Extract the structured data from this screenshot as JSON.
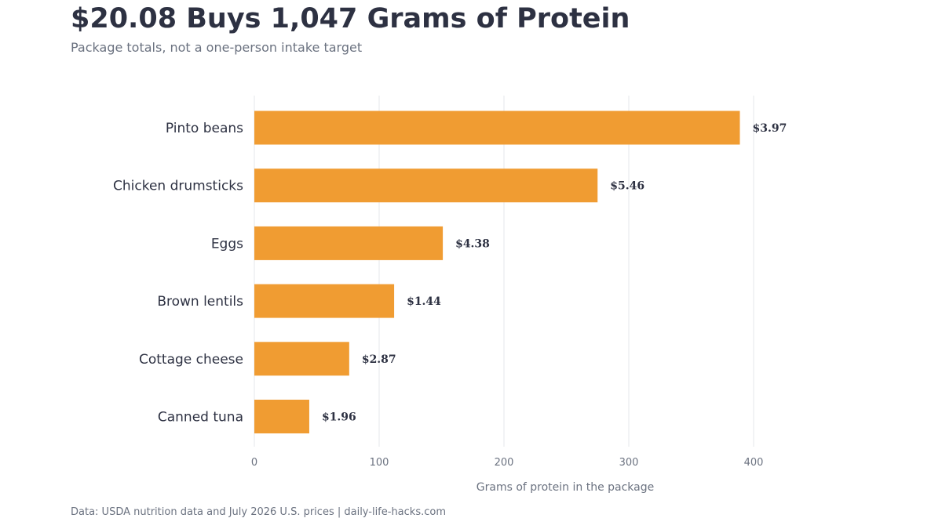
{
  "header": {
    "title": "$20.08 Buys 1,047 Grams of Protein",
    "subtitle": "Package totals, not a one-person intake target"
  },
  "footer": {
    "source": "Data: USDA nutrition data and July 2026 U.S. prices | daily-life-hacks.com"
  },
  "colors": {
    "bar": "#f09c32",
    "text": "#2d3142",
    "muted": "#6b7280",
    "grid": "#e5e7eb"
  },
  "chart_data": {
    "type": "bar",
    "orientation": "horizontal",
    "categories": [
      "Pinto beans",
      "Chicken drumsticks",
      "Eggs",
      "Brown lentils",
      "Cottage cheese",
      "Canned tuna"
    ],
    "values": [
      389,
      275,
      151,
      112,
      76,
      44
    ],
    "data_labels": [
      "$3.97",
      "$5.46",
      "$4.38",
      "$1.44",
      "$2.87",
      "$1.96"
    ],
    "xlabel": "Grams of protein in the package",
    "ylabel": "",
    "xlim": [
      0,
      410
    ],
    "xticks": [
      0,
      100,
      200,
      300,
      400
    ],
    "grid": true
  }
}
